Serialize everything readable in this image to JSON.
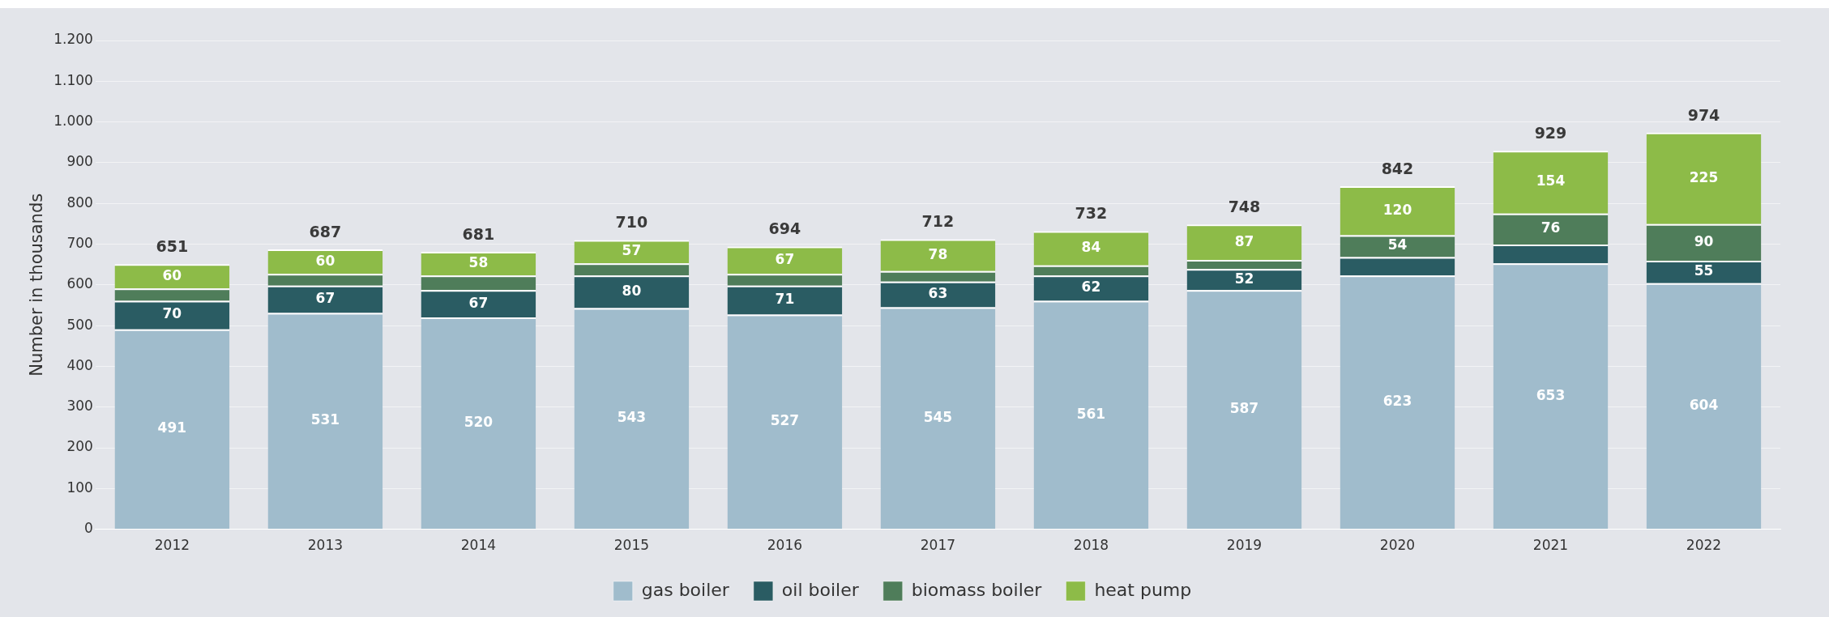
{
  "chart_data": {
    "type": "bar",
    "ylabel": "Number in thousands",
    "stacked": true,
    "grid": "y",
    "legend": "bottom",
    "categories": [
      "2012",
      "2013",
      "2014",
      "2015",
      "2016",
      "2017",
      "2018",
      "2019",
      "2020",
      "2021",
      "2022"
    ],
    "series": [
      {
        "name": "gas boiler",
        "color": "#a0bccc",
        "values": [
          491,
          531,
          520,
          543,
          527,
          545,
          561,
          587,
          623,
          653,
          604
        ],
        "value_labels": [
          "491",
          "531",
          "520",
          "543",
          "527",
          "545",
          "561",
          "587",
          "623",
          "653",
          "604"
        ]
      },
      {
        "name": "oil boiler",
        "color": "#2a5c63",
        "values": [
          70,
          67,
          67,
          80,
          71,
          63,
          62,
          52,
          45,
          46,
          55
        ],
        "value_labels": [
          "70",
          "67",
          "67",
          "80",
          "71",
          "63",
          "62",
          "52",
          null,
          null,
          "55"
        ]
      },
      {
        "name": "biomass boiler",
        "color": "#4f7d5a",
        "values": [
          30,
          29,
          36,
          30,
          29,
          26,
          25,
          22,
          54,
          76,
          90
        ],
        "value_labels": [
          null,
          null,
          null,
          null,
          null,
          null,
          null,
          null,
          "54",
          "76",
          "90"
        ]
      },
      {
        "name": "heat pump",
        "color": "#8dbb48",
        "values": [
          60,
          60,
          58,
          57,
          67,
          78,
          84,
          87,
          120,
          154,
          225
        ],
        "value_labels": [
          "60",
          "60",
          "58",
          "57",
          "67",
          "78",
          "84",
          "87",
          "120",
          "154",
          "225"
        ]
      }
    ],
    "totals": [
      "651",
      "687",
      "681",
      "710",
      "694",
      "712",
      "732",
      "748",
      "842",
      "929",
      "974"
    ],
    "ylim": [
      0,
      1200
    ],
    "yticks": [
      0,
      100,
      200,
      300,
      400,
      500,
      600,
      700,
      800,
      900,
      {
        "value": 1000,
        "label": "1.000"
      },
      {
        "value": 1100,
        "label": "1.100"
      },
      {
        "value": 1200,
        "label": "1.200"
      }
    ]
  }
}
